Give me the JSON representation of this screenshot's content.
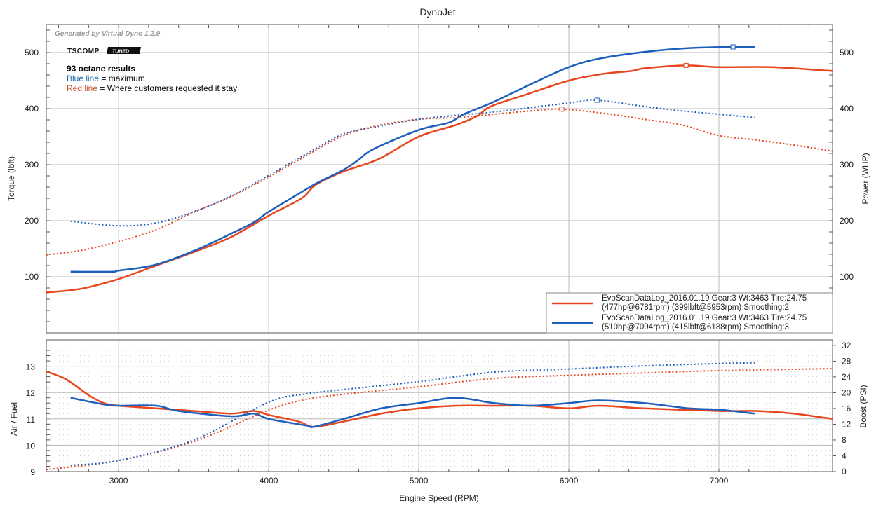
{
  "chart_data": [
    {
      "type": "line",
      "title": "DynoJet",
      "watermark": "Generated by Virtual Dyno 1.2.9",
      "logo": "TSCOMP TUNED",
      "annotations": {
        "heading": "93 octane results",
        "blue_label": "Blue line",
        "blue_text": " = maximum",
        "red_label": "Red line",
        "red_text": " = Where customers requested it stay"
      },
      "xlabel": "Engine Speed (RPM)",
      "ylabel": "Torque (lbft)",
      "y2label": "Power (WHP)",
      "xlim": [
        2518,
        7757
      ],
      "ylim": [
        0,
        550
      ],
      "xticks": [
        3000,
        4000,
        5000,
        6000,
        7000
      ],
      "yticks": [
        100,
        200,
        300,
        400,
        500
      ],
      "legend_position": "bottom-right",
      "legend": [
        {
          "line1": "EvoScanDataLog_2016.01.19 Gear:3 Wt:3463 Tire:24.75",
          "line2": "(477hp@6781rpm) (399lbft@5953rpm) Smoothing:2",
          "color": "#e8461e"
        },
        {
          "line1": "EvoScanDataLog_2016.01.19 Gear:3 Wt:3463 Tire:24.75",
          "line2": "(510hp@7094rpm) (415lbft@6188rpm) Smoothing:3",
          "color": "#1c5fbd"
        }
      ],
      "series": [
        {
          "name": "Red power (hp)",
          "color": "#e8461e",
          "style": "solid",
          "peak": [
            6781,
            477
          ],
          "x": [
            2518,
            2680,
            2795,
            3000,
            3240,
            3500,
            3750,
            4000,
            4220,
            4313,
            4500,
            4733,
            5000,
            5250,
            5390,
            5480,
            5715,
            6000,
            6230,
            6415,
            6510,
            6781,
            7000,
            7350,
            7757
          ],
          "y": [
            72,
            76,
            81,
            96,
            119,
            144,
            171,
            209,
            240,
            264,
            288,
            310,
            350,
            371,
            387,
            404,
            425,
            450,
            462,
            467,
            472,
            477,
            474,
            474,
            467
          ]
        },
        {
          "name": "Blue power (hp)",
          "color": "#1c5fbd",
          "style": "solid",
          "peak": [
            7094,
            510
          ],
          "x": [
            2680,
            2958,
            3000,
            3240,
            3500,
            3750,
            3900,
            4000,
            4200,
            4313,
            4500,
            4600,
            4700,
            5000,
            5200,
            5300,
            5500,
            5750,
            6000,
            6200,
            6500,
            6800,
            7094,
            7240
          ],
          "y": [
            109,
            109,
            111,
            121,
            146,
            177,
            197,
            216,
            248,
            266,
            291,
            309,
            328,
            362,
            375,
            390,
            412,
            444,
            474,
            489,
            501,
            508,
            510,
            510
          ]
        },
        {
          "name": "Red torque (lbft)",
          "color": "#e8461e",
          "style": "dotted",
          "peak": [
            5953,
            399
          ],
          "x": [
            2518,
            2750,
            3000,
            3250,
            3500,
            3750,
            4000,
            4250,
            4500,
            4750,
            5000,
            5250,
            5500,
            5750,
            5953,
            6250,
            6500,
            6750,
            7000,
            7250,
            7500,
            7757
          ],
          "y": [
            139,
            147,
            163,
            184,
            215,
            243,
            278,
            316,
            352,
            371,
            381,
            384,
            390,
            396,
            399,
            391,
            381,
            371,
            352,
            344,
            335,
            324
          ]
        },
        {
          "name": "Blue torque (lbft)",
          "color": "#1c5fbd",
          "style": "dotted",
          "peak": [
            6188,
            415
          ],
          "x": [
            2680,
            3000,
            3250,
            3500,
            3750,
            4000,
            4250,
            4500,
            4750,
            5000,
            5250,
            5500,
            5750,
            6000,
            6188,
            6500,
            6750,
            7000,
            7240
          ],
          "y": [
            199,
            191,
            196,
            216,
            244,
            281,
            319,
            355,
            369,
            381,
            388,
            394,
            402,
            410,
            415,
            404,
            396,
            390,
            384
          ]
        }
      ]
    },
    {
      "type": "line",
      "xlabel": "Engine Speed (RPM)",
      "ylabel": "Air / Fuel",
      "y2label": "Boost (PSI)",
      "xlim": [
        2518,
        7757
      ],
      "ylim": [
        9,
        14
      ],
      "y2lim": [
        0,
        33.4
      ],
      "xticks": [
        3000,
        4000,
        5000,
        6000,
        7000
      ],
      "yticks": [
        9,
        10,
        11,
        12,
        13
      ],
      "y2ticks": [
        0,
        4,
        8,
        12,
        16,
        20,
        24,
        28,
        32
      ],
      "series": [
        {
          "name": "Red AFR",
          "color": "#e8461e",
          "style": "solid",
          "axis": "left",
          "x": [
            2518,
            2650,
            2800,
            2900,
            3000,
            3250,
            3500,
            3750,
            3900,
            4000,
            4200,
            4300,
            4500,
            4750,
            5000,
            5250,
            5500,
            5750,
            6000,
            6200,
            6500,
            7000,
            7250,
            7500,
            7757
          ],
          "y": [
            12.8,
            12.5,
            11.9,
            11.6,
            11.5,
            11.4,
            11.3,
            11.2,
            11.3,
            11.15,
            10.9,
            10.7,
            10.9,
            11.2,
            11.4,
            11.5,
            11.5,
            11.5,
            11.4,
            11.5,
            11.4,
            11.3,
            11.3,
            11.2,
            11.0
          ]
        },
        {
          "name": "Blue AFR",
          "color": "#1c5fbd",
          "style": "solid",
          "axis": "left",
          "x": [
            2680,
            2900,
            3000,
            3250,
            3400,
            3750,
            3900,
            4000,
            4250,
            4300,
            4500,
            4750,
            5000,
            5250,
            5500,
            5750,
            6000,
            6200,
            6500,
            6800,
            7000,
            7240
          ],
          "y": [
            11.8,
            11.55,
            11.5,
            11.5,
            11.3,
            11.1,
            11.2,
            11.0,
            10.75,
            10.7,
            11.0,
            11.4,
            11.6,
            11.8,
            11.6,
            11.5,
            11.6,
            11.7,
            11.6,
            11.4,
            11.35,
            11.2
          ]
        },
        {
          "name": "Red boost",
          "color": "#e8461e",
          "style": "dotted",
          "axis": "right",
          "x": [
            2518,
            3000,
            3500,
            4000,
            4250,
            4500,
            5000,
            5500,
            6000,
            6500,
            7000,
            7757
          ],
          "y": [
            0.5,
            2.8,
            7.6,
            15.6,
            18.3,
            19.6,
            21.5,
            23.6,
            24.4,
            25.0,
            25.6,
            26.1
          ]
        },
        {
          "name": "Blue boost",
          "color": "#1c5fbd",
          "style": "dotted",
          "axis": "right",
          "x": [
            2680,
            3000,
            3500,
            4000,
            4250,
            4500,
            5000,
            5500,
            6000,
            6500,
            7000,
            7240
          ],
          "y": [
            1.6,
            2.8,
            8.0,
            17.6,
            19.7,
            20.8,
            22.8,
            25.2,
            26.0,
            26.8,
            27.4,
            27.6
          ]
        }
      ]
    }
  ]
}
